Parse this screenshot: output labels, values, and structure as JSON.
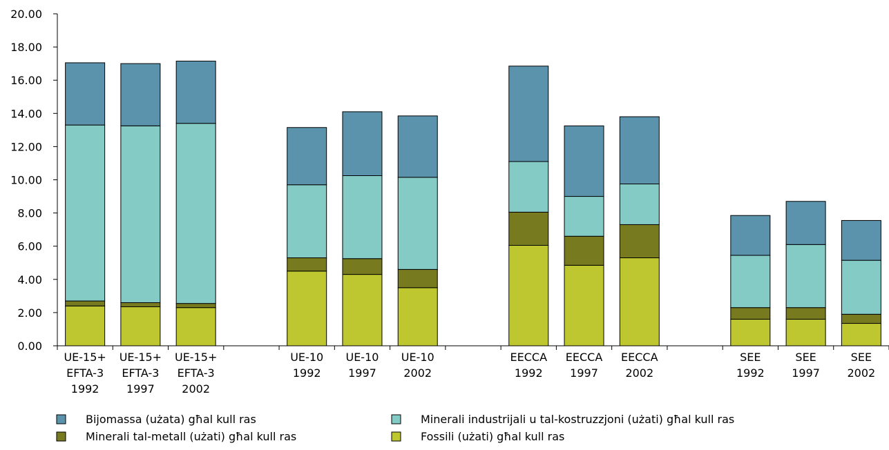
{
  "chart_data": {
    "type": "bar",
    "stacked": true,
    "title": "",
    "xlabel": "",
    "ylabel": "",
    "ylim": [
      0,
      20
    ],
    "yticks": [
      "0.00",
      "2.00",
      "4.00",
      "6.00",
      "8.00",
      "10.00",
      "12.00",
      "14.00",
      "16.00",
      "18.00",
      "20.00"
    ],
    "grid": false,
    "legend_position": "bottom",
    "categories": [
      {
        "line1": "UE-15+",
        "line2": "EFTA-3",
        "line3": "1992"
      },
      {
        "line1": "UE-15+",
        "line2": "EFTA-3",
        "line3": "1997"
      },
      {
        "line1": "UE-15+",
        "line2": "EFTA-3",
        "line3": "2002"
      },
      {
        "line1": "",
        "line2": "",
        "line3": ""
      },
      {
        "line1": "UE-10",
        "line2": "1992",
        "line3": ""
      },
      {
        "line1": "UE-10",
        "line2": "1997",
        "line3": ""
      },
      {
        "line1": "UE-10",
        "line2": "2002",
        "line3": ""
      },
      {
        "line1": "",
        "line2": "",
        "line3": ""
      },
      {
        "line1": "EECCA",
        "line2": "1992",
        "line3": ""
      },
      {
        "line1": "EECCA",
        "line2": "1997",
        "line3": ""
      },
      {
        "line1": "EECCA",
        "line2": "2002",
        "line3": ""
      },
      {
        "line1": "",
        "line2": "",
        "line3": ""
      },
      {
        "line1": "SEE",
        "line2": "1992",
        "line3": ""
      },
      {
        "line1": "SEE",
        "line2": "1997",
        "line3": ""
      },
      {
        "line1": "SEE",
        "line2": "2002",
        "line3": ""
      }
    ],
    "series": [
      {
        "name": "Fossili (użati) għal kull ras",
        "color": "#bfc730",
        "values": [
          2.4,
          2.35,
          2.3,
          null,
          4.5,
          4.3,
          3.5,
          null,
          6.05,
          4.85,
          5.3,
          null,
          1.6,
          1.6,
          1.35
        ]
      },
      {
        "name": "Minerali tal-metall (użati) għal kull ras",
        "color": "#777a1f",
        "values": [
          0.3,
          0.25,
          0.25,
          null,
          0.8,
          0.95,
          1.1,
          null,
          2.0,
          1.75,
          2.0,
          null,
          0.7,
          0.7,
          0.55
        ]
      },
      {
        "name": "Minerali industrijali u tal-kostruzzjoni (użati) għal kull ras",
        "color": "#84cbc5",
        "values": [
          10.6,
          10.65,
          10.85,
          null,
          4.4,
          5.0,
          5.55,
          null,
          3.05,
          2.4,
          2.45,
          null,
          3.15,
          3.8,
          3.25
        ]
      },
      {
        "name": "Bijomassa (użata) għal kull ras",
        "color": "#5b93ad",
        "values": [
          3.75,
          3.75,
          3.75,
          null,
          3.45,
          3.85,
          3.7,
          null,
          5.75,
          4.25,
          4.05,
          null,
          2.4,
          2.6,
          2.4
        ]
      }
    ],
    "legend_order": [
      3,
      2,
      1,
      0
    ]
  }
}
